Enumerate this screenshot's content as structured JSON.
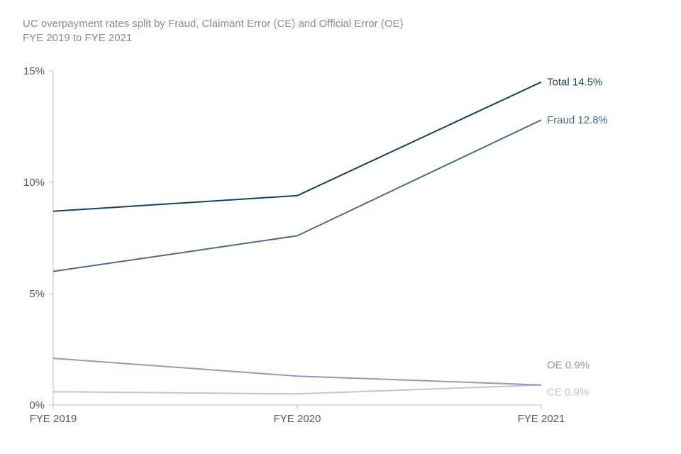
{
  "chart_data": {
    "type": "line",
    "title": "UC overpayment  rates split by Fraud, Claimant Error (CE) and Official Error (OE)",
    "subtitle": "FYE 2019 to FYE 2021",
    "xlabel": "",
    "ylabel": "",
    "categories": [
      "FYE 2019",
      "FYE 2020",
      "FYE 2021"
    ],
    "ylim": [
      0,
      15
    ],
    "yticks": [
      {
        "value": 0,
        "label": "0%"
      },
      {
        "value": 5,
        "label": "5%"
      },
      {
        "value": 10,
        "label": "10%"
      },
      {
        "value": 15,
        "label": "15%"
      }
    ],
    "grid": false,
    "series": [
      {
        "key": "total",
        "name": "Total",
        "values": [
          8.7,
          9.4,
          14.5
        ],
        "color": "#17405f",
        "end_label": "Total 14.5%"
      },
      {
        "key": "fraud",
        "name": "Fraud",
        "values": [
          6.0,
          7.6,
          12.8
        ],
        "color": "#4e6a8a",
        "end_label": "Fraud 12.8%"
      },
      {
        "key": "oe",
        "name": "OE",
        "values": [
          2.1,
          1.3,
          0.9
        ],
        "color": "#8f9bb8",
        "end_label": "OE 0.9%"
      },
      {
        "key": "ce",
        "name": "CE",
        "values": [
          0.6,
          0.5,
          0.9
        ],
        "color": "#bcc6d3",
        "end_label": "CE 0.9%"
      }
    ]
  }
}
